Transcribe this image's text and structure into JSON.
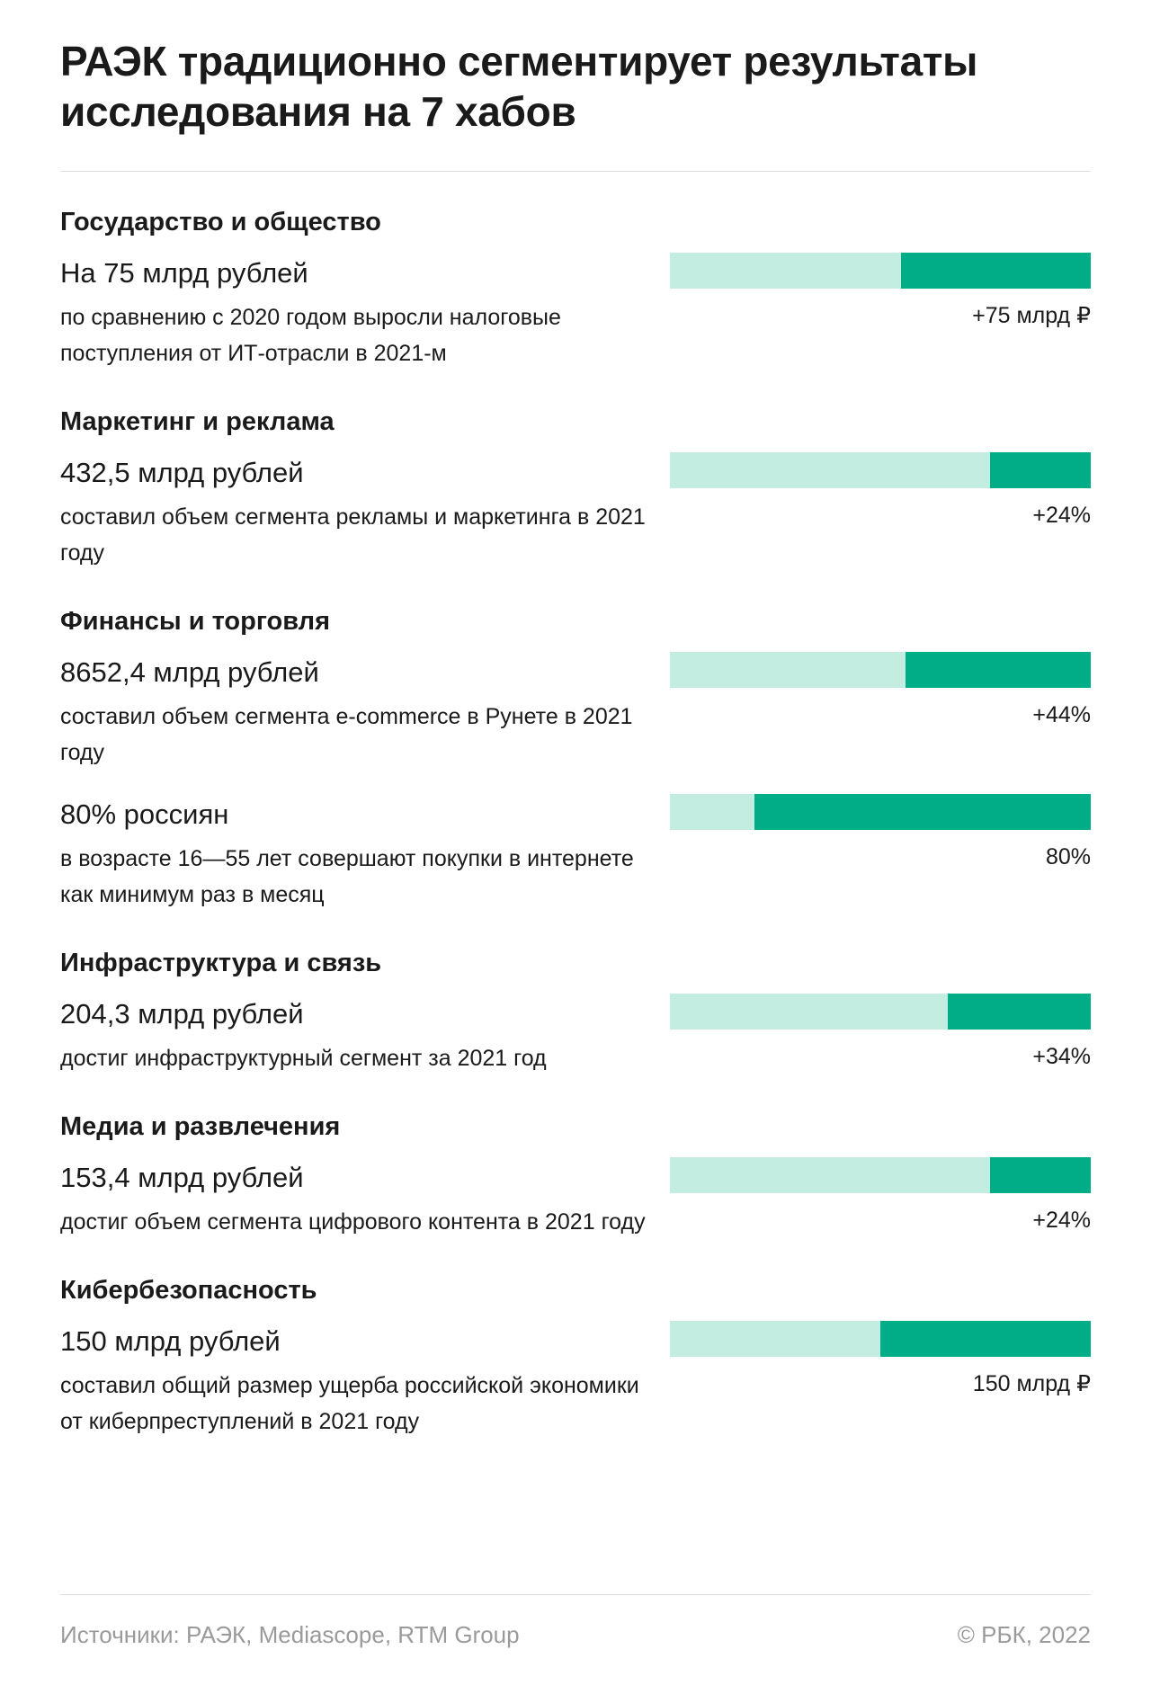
{
  "title": "РАЭК традиционно сегментирует результаты исследования на 7 хабов",
  "colors": {
    "bar_background": "#c2ede0",
    "bar_fill": "#00ad86",
    "footer_text": "#9a9a9a",
    "divider": "#dcdcdc"
  },
  "chart_data": {
    "type": "bar",
    "title": "РАЭК традиционно сегментирует результаты исследования на 7 хабов",
    "orientation": "horizontal",
    "note": "Each bar: dark segment is the fill share, right-aligned",
    "sections": [
      {
        "title": "Государство и общество",
        "items": [
          {
            "value_text": "На 75 млрд рублей",
            "description": "по сравнению с 2020 годом выросли налоговые поступления от ИТ-отрасли в 2021-м",
            "bar_label": "+75 млрд ₽",
            "fill_fraction": 0.45
          }
        ]
      },
      {
        "title": "Маркетинг и реклама",
        "items": [
          {
            "value_text": "432,5 млрд рублей",
            "description": "составил объем сегмента рекламы и маркетинга в 2021 году",
            "bar_label": "+24%",
            "fill_fraction": 0.24
          }
        ]
      },
      {
        "title": "Финансы и торговля",
        "items": [
          {
            "value_text": "8652,4 млрд рублей",
            "description": "составил объем сегмента e-commerce в Рунете в 2021 году",
            "bar_label": "+44%",
            "fill_fraction": 0.44
          },
          {
            "value_text": "80% россиян",
            "description": "в возрасте 16—55 лет совершают покупки в интернете как минимум раз в месяц",
            "bar_label": "80%",
            "fill_fraction": 0.8
          }
        ]
      },
      {
        "title": "Инфраструктура и связь",
        "items": [
          {
            "value_text": "204,3 млрд рублей",
            "description": "достиг инфраструктурный сегмент за 2021 год",
            "bar_label": "+34%",
            "fill_fraction": 0.34
          }
        ]
      },
      {
        "title": "Медиа и развлечения",
        "items": [
          {
            "value_text": "153,4 млрд рублей",
            "description": "достиг объем сегмента цифрового контента в 2021 году",
            "bar_label": "+24%",
            "fill_fraction": 0.24
          }
        ]
      },
      {
        "title": "Кибербезопасность",
        "items": [
          {
            "value_text": "150 млрд рублей",
            "description": "составил общий размер ущерба российской экономики от киберпреступлений в 2021 году",
            "bar_label": "150 млрд ₽",
            "fill_fraction": 0.5
          }
        ]
      }
    ]
  },
  "footer": {
    "sources": "Источники: РАЭК, Mediascope, RTM Group",
    "copyright": "© РБК, 2022"
  }
}
